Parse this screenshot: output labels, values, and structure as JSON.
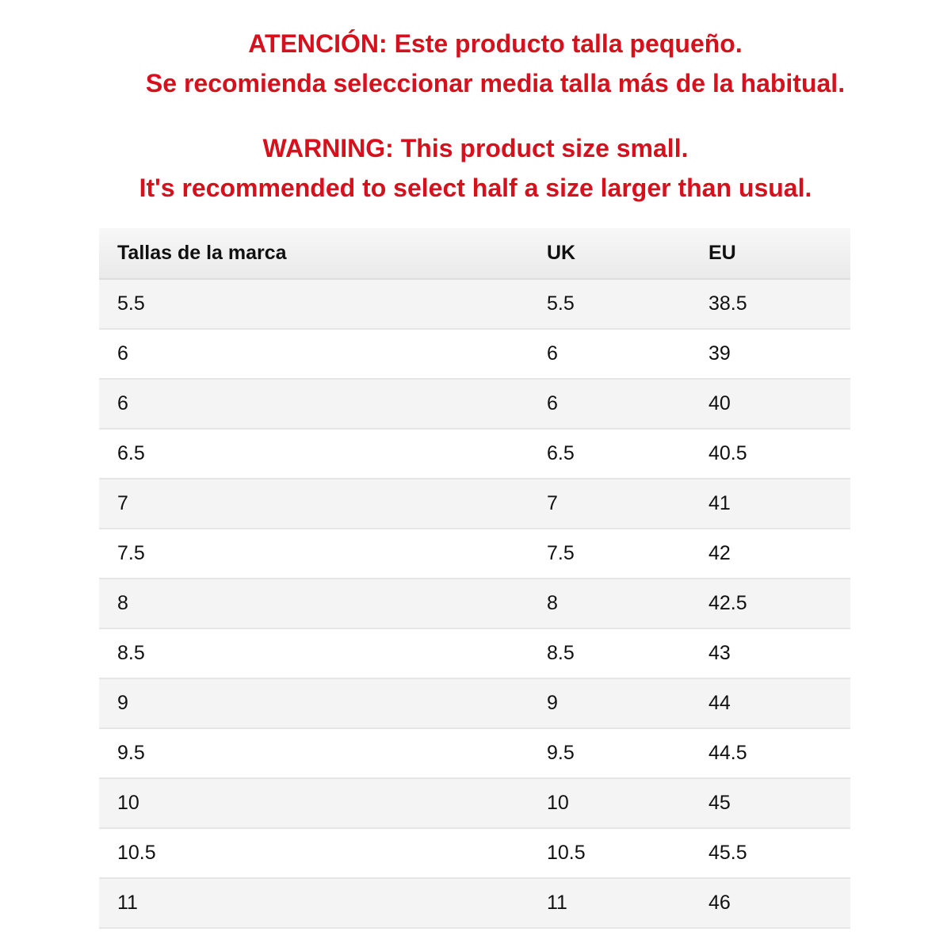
{
  "notice": {
    "es": [
      "ATENCIÓN: Este producto talla pequeño.",
      "Se recomienda seleccionar media talla más de la habitual."
    ],
    "en": [
      "WARNING: This product size small.",
      "It's recommended to select half a size larger than usual."
    ]
  },
  "table": {
    "headers": [
      "Tallas de la marca",
      "UK",
      "EU"
    ],
    "rows": [
      [
        "5.5",
        "5.5",
        "38.5"
      ],
      [
        "6",
        "6",
        "39"
      ],
      [
        "6",
        "6",
        "40"
      ],
      [
        "6.5",
        "6.5",
        "40.5"
      ],
      [
        "7",
        "7",
        "41"
      ],
      [
        "7.5",
        "7.5",
        "42"
      ],
      [
        "8",
        "8",
        "42.5"
      ],
      [
        "8.5",
        "8.5",
        "43"
      ],
      [
        "9",
        "9",
        "44"
      ],
      [
        "9.5",
        "9.5",
        "44.5"
      ],
      [
        "10",
        "10",
        "45"
      ],
      [
        "10.5",
        "10.5",
        "45.5"
      ],
      [
        "11",
        "11",
        "46"
      ]
    ]
  }
}
